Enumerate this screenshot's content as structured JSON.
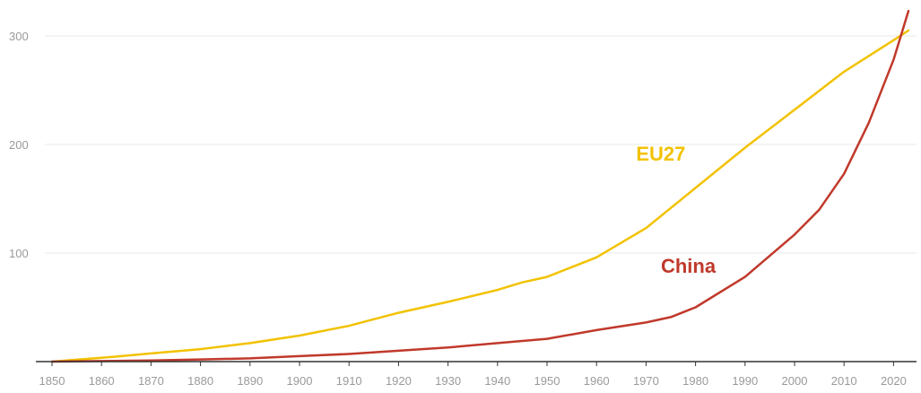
{
  "chart_data": {
    "type": "line",
    "title": "",
    "xlabel": "",
    "ylabel": "",
    "xlim": [
      1850,
      2025
    ],
    "ylim": [
      0,
      300
    ],
    "y_ticks": [
      100,
      200,
      300
    ],
    "x_ticks": [
      1850,
      1860,
      1870,
      1880,
      1890,
      1900,
      1910,
      1920,
      1930,
      1940,
      1950,
      1960,
      1970,
      1980,
      1990,
      2000,
      2010,
      2020
    ],
    "grid": "horizontal",
    "legend": "none (direct labels)",
    "series": [
      {
        "name": "EU27",
        "color": "#F2C200",
        "x": [
          1850,
          1860,
          1870,
          1880,
          1890,
          1900,
          1910,
          1920,
          1930,
          1940,
          1945,
          1950,
          1960,
          1970,
          1980,
          1990,
          2000,
          2010,
          2020,
          2023
        ],
        "y": [
          0,
          3.5,
          7.5,
          11.5,
          17,
          24,
          33,
          45,
          55,
          66,
          73,
          78,
          96,
          123,
          160,
          197,
          232,
          267,
          296,
          305
        ]
      },
      {
        "name": "China",
        "color": "#C0392B",
        "x": [
          1850,
          1860,
          1870,
          1880,
          1890,
          1900,
          1910,
          1920,
          1930,
          1940,
          1950,
          1960,
          1970,
          1975,
          1980,
          1990,
          2000,
          2005,
          2010,
          2015,
          2020,
          2023
        ],
        "y": [
          0,
          0.5,
          1,
          2,
          3,
          5,
          7,
          10,
          13,
          17,
          21,
          29,
          36,
          41,
          50,
          78,
          117,
          140,
          173,
          220,
          278,
          323
        ]
      }
    ]
  }
}
